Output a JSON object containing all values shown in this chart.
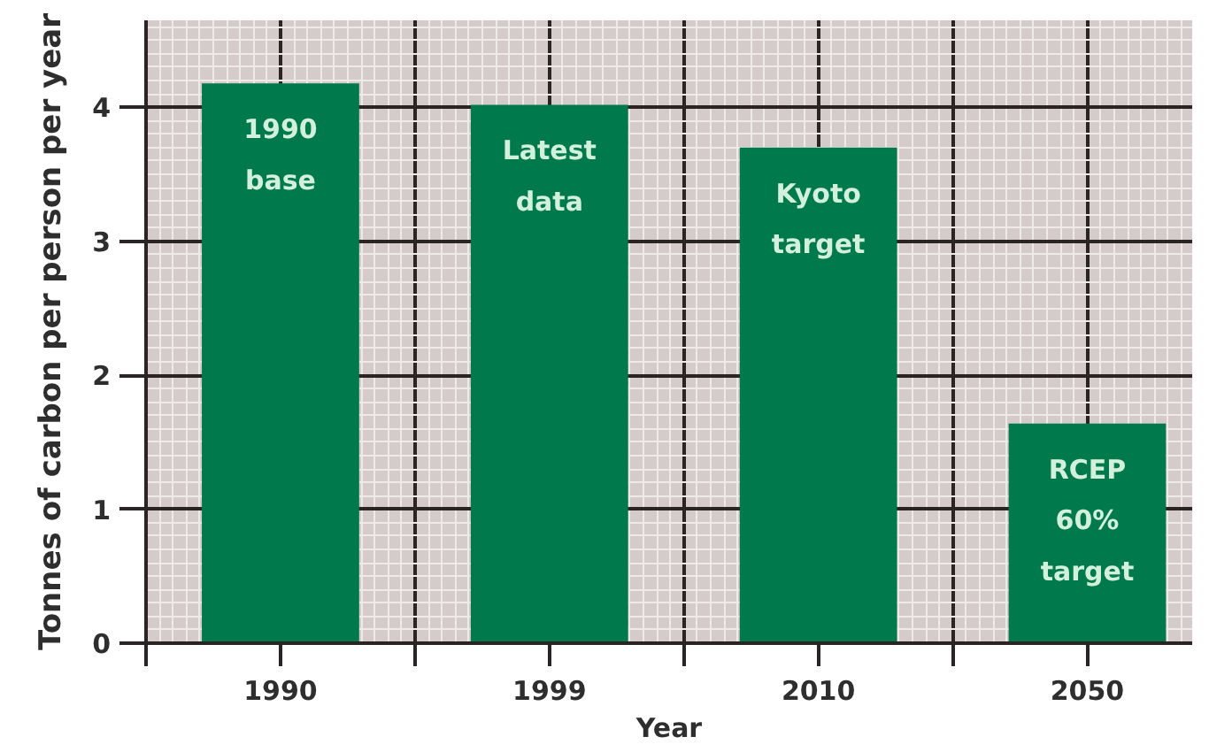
{
  "chart_data": {
    "type": "bar",
    "categories": [
      "1990",
      "1999",
      "2010",
      "2050"
    ],
    "values": [
      4.18,
      4.02,
      3.7,
      1.64
    ],
    "color": "#007a4c",
    "xlabel": "Year",
    "ylabel": "Tonnes of carbon per person per year",
    "ylim": [
      0,
      4.65
    ],
    "yticks": [
      0,
      1,
      2,
      3,
      4
    ],
    "grid": true,
    "annotations": [
      {
        "text": "1990\nbase",
        "x": "1990",
        "y": 4.18
      },
      {
        "text": "Latest\ndata",
        "x": "1999",
        "y": 4.02
      },
      {
        "text": "Kyoto\ntarget",
        "x": "2010",
        "y": 3.7
      },
      {
        "text": "RCEP\n60%\ntarget",
        "x": "2050",
        "y": 1.64
      }
    ]
  }
}
